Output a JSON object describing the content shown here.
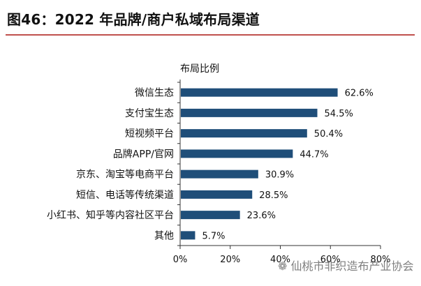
{
  "header": {
    "title": "图46：2022 年品牌/商户私域布局渠道"
  },
  "watermark": {
    "icon": "wechat-icon",
    "text": "仙桃市非织造布产业协会"
  },
  "chart_data": {
    "type": "bar",
    "orientation": "horizontal",
    "legend": "布局比例",
    "legend_placement": "top-left",
    "categories": [
      "微信生态",
      "支付宝生态",
      "短视频平台",
      "品牌APP/官网",
      "京东、淘宝等电商平台",
      "短信、电话等传统渠道",
      "小红书、知乎等内容社区平台",
      "其他"
    ],
    "values": [
      62.6,
      54.5,
      50.4,
      44.7,
      30.9,
      28.5,
      23.6,
      5.7
    ],
    "value_labels": [
      "62.6%",
      "54.5%",
      "50.4%",
      "44.7%",
      "30.9%",
      "28.5%",
      "23.6%",
      "5.7%"
    ],
    "xlim": [
      0,
      80
    ],
    "x_ticks": [
      0,
      20,
      40,
      60,
      80
    ],
    "x_tick_labels": [
      "0%",
      "20%",
      "40%",
      "60%",
      "80%"
    ],
    "grid": false,
    "bar_color": "#1f4e79"
  }
}
